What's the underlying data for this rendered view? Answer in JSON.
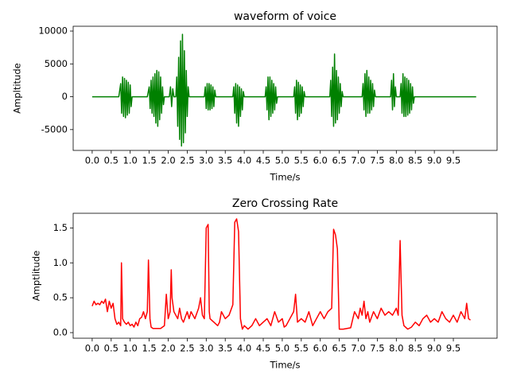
{
  "chart_data": [
    {
      "type": "line",
      "title": "waveform of voice",
      "xlabel": "Time/s",
      "ylabel": "Ampltitude",
      "color": "#008000",
      "xlim": [
        -0.5,
        10.65
      ],
      "ylim": [
        -8170,
        10730
      ],
      "xticks": [
        {
          "value": 0,
          "label": "0.0"
        },
        0.5,
        {
          "value": 1,
          "label": "1.0"
        },
        1.5,
        {
          "value": 2,
          "label": "2.0"
        },
        2.5,
        {
          "value": 3,
          "label": "3.0"
        },
        3.5,
        {
          "value": 4,
          "label": "4.0"
        },
        4.5,
        {
          "value": 5,
          "label": "5.0"
        },
        5.5,
        {
          "value": 6,
          "label": "6.0"
        },
        6.5,
        {
          "value": 7,
          "label": "7.0"
        },
        7.5,
        {
          "value": 8,
          "label": "8.0"
        },
        8.5,
        {
          "value": 9,
          "label": "9.0"
        },
        9.5
      ],
      "yticks": [
        -5000,
        0,
        5000,
        10000
      ],
      "x": [
        0,
        0.7,
        0.75,
        0.775,
        0.8,
        0.825,
        0.85,
        0.875,
        0.9,
        0.925,
        0.95,
        0.975,
        1.0,
        1.025,
        1.05,
        1.45,
        1.5,
        1.525,
        1.55,
        1.575,
        1.6,
        1.625,
        1.65,
        1.675,
        1.7,
        1.725,
        1.75,
        1.775,
        1.8,
        1.825,
        1.85,
        1.875,
        1.9,
        2.03,
        2.06,
        2.09,
        2.12,
        2.15,
        2.2,
        2.225,
        2.25,
        2.275,
        2.3,
        2.325,
        2.35,
        2.375,
        2.4,
        2.425,
        2.45,
        2.475,
        2.5,
        2.525,
        2.55,
        2.95,
        2.975,
        3.0,
        3.025,
        3.05,
        3.075,
        3.1,
        3.125,
        3.15,
        3.175,
        3.2,
        3.225,
        3.25,
        3.7,
        3.725,
        3.75,
        3.775,
        3.8,
        3.825,
        3.85,
        3.875,
        3.9,
        3.925,
        3.95,
        3.975,
        4.0,
        4.55,
        4.575,
        4.6,
        4.625,
        4.65,
        4.675,
        4.7,
        4.725,
        4.75,
        4.775,
        4.8,
        4.825,
        4.85,
        4.875,
        5.3,
        5.325,
        5.35,
        5.375,
        5.4,
        5.425,
        5.45,
        5.475,
        5.5,
        5.525,
        5.55,
        5.575,
        5.6,
        6.25,
        6.275,
        6.3,
        6.325,
        6.35,
        6.375,
        6.4,
        6.425,
        6.45,
        6.475,
        6.5,
        6.525,
        6.55,
        6.575,
        6.6,
        7.1,
        7.125,
        7.15,
        7.175,
        7.2,
        7.225,
        7.25,
        7.275,
        7.3,
        7.325,
        7.35,
        7.375,
        7.4,
        7.425,
        7.45,
        7.85,
        7.875,
        7.9,
        7.925,
        7.95,
        7.975,
        8.0,
        8.1,
        8.125,
        8.15,
        8.175,
        8.2,
        8.225,
        8.25,
        8.275,
        8.3,
        8.325,
        8.35,
        8.375,
        8.4,
        8.425,
        8.45,
        8.475,
        10.1
      ],
      "values": [
        0,
        0,
        2000,
        -2500,
        3000,
        -3000,
        2800,
        -3200,
        2500,
        -2800,
        2200,
        -2500,
        1800,
        -1500,
        0,
        0,
        1500,
        -1800,
        2500,
        -2500,
        3000,
        -3000,
        3500,
        -4000,
        4000,
        -4500,
        3800,
        -3500,
        3000,
        -2500,
        1500,
        -1200,
        0,
        0,
        1500,
        -1500,
        1200,
        0,
        0,
        3000,
        -4500,
        6000,
        -6500,
        8500,
        -7500,
        9500,
        -7000,
        7000,
        -5500,
        4000,
        -3000,
        1500,
        0,
        0,
        1500,
        -1800,
        2000,
        -2000,
        2000,
        -2000,
        1800,
        -1800,
        1500,
        -1500,
        1000,
        0,
        0,
        1500,
        -2500,
        2000,
        -4000,
        1800,
        -4500,
        1500,
        -3000,
        1200,
        -2000,
        800,
        0,
        0,
        1500,
        -2000,
        3000,
        -3500,
        3000,
        -3000,
        2500,
        -2500,
        2000,
        -2000,
        1500,
        -1000,
        0,
        0,
        1500,
        -2500,
        2500,
        -3500,
        2200,
        -3000,
        1800,
        -2500,
        1500,
        -1500,
        800,
        0,
        0,
        2500,
        -3000,
        4500,
        -4500,
        6500,
        -4000,
        4000,
        -3500,
        3000,
        -2500,
        2000,
        -1500,
        800,
        0,
        0,
        2000,
        -2000,
        3500,
        -3000,
        4000,
        -2500,
        3000,
        -2500,
        2500,
        -2000,
        2000,
        -1500,
        1000,
        0,
        0,
        2500,
        -2000,
        3500,
        -1500,
        1500,
        0,
        0,
        2000,
        -2500,
        3500,
        -3000,
        3000,
        -3000,
        2800,
        -2800,
        2500,
        -2500,
        2000,
        -2000,
        1500,
        -1000,
        0,
        0
      ]
    },
    {
      "type": "line",
      "title": "Zero Crossing Rate",
      "xlabel": "Time/s",
      "ylabel": "Amptlitude",
      "color": "#ff0000",
      "xlim": [
        -0.5,
        10.65
      ],
      "ylim": [
        -0.08,
        1.71
      ],
      "xticks": [
        {
          "value": 0,
          "label": "0.0"
        },
        0.5,
        {
          "value": 1,
          "label": "1.0"
        },
        1.5,
        {
          "value": 2,
          "label": "2.0"
        },
        2.5,
        {
          "value": 3,
          "label": "3.0"
        },
        3.5,
        {
          "value": 4,
          "label": "4.0"
        },
        4.5,
        {
          "value": 5,
          "label": "5.0"
        },
        5.5,
        {
          "value": 6,
          "label": "6.0"
        },
        6.5,
        {
          "value": 7,
          "label": "7.0"
        },
        7.5,
        {
          "value": 8,
          "label": "8.0"
        },
        8.5,
        {
          "value": 9,
          "label": "9.0"
        },
        9.5
      ],
      "yticks": [
        {
          "value": 0,
          "label": "0.0"
        },
        0.5,
        {
          "value": 1,
          "label": "1.0"
        },
        1.5
      ],
      "x": [
        0,
        0.05,
        0.1,
        0.15,
        0.2,
        0.25,
        0.3,
        0.35,
        0.4,
        0.45,
        0.5,
        0.55,
        0.6,
        0.65,
        0.7,
        0.75,
        0.77,
        0.8,
        0.85,
        0.9,
        0.95,
        1.0,
        1.05,
        1.1,
        1.15,
        1.2,
        1.25,
        1.3,
        1.35,
        1.4,
        1.45,
        1.48,
        1.52,
        1.55,
        1.6,
        1.7,
        1.8,
        1.9,
        1.95,
        2.0,
        2.05,
        2.08,
        2.1,
        2.15,
        2.2,
        2.25,
        2.3,
        2.35,
        2.4,
        2.5,
        2.55,
        2.6,
        2.7,
        2.8,
        2.85,
        2.9,
        2.95,
        3.0,
        3.05,
        3.08,
        3.1,
        3.2,
        3.3,
        3.35,
        3.4,
        3.5,
        3.6,
        3.7,
        3.75,
        3.8,
        3.85,
        3.9,
        3.95,
        4.0,
        4.1,
        4.2,
        4.3,
        4.4,
        4.5,
        4.6,
        4.7,
        4.8,
        4.9,
        5.0,
        5.05,
        5.1,
        5.2,
        5.3,
        5.35,
        5.4,
        5.5,
        5.6,
        5.7,
        5.8,
        5.9,
        6.0,
        6.1,
        6.2,
        6.3,
        6.35,
        6.4,
        6.45,
        6.5,
        6.6,
        6.7,
        6.8,
        6.9,
        7.0,
        7.05,
        7.1,
        7.15,
        7.2,
        7.25,
        7.3,
        7.4,
        7.5,
        7.6,
        7.7,
        7.8,
        7.9,
        8.0,
        8.05,
        8.1,
        8.15,
        8.2,
        8.3,
        8.4,
        8.5,
        8.6,
        8.7,
        8.8,
        8.9,
        9.0,
        9.1,
        9.2,
        9.3,
        9.4,
        9.5,
        9.6,
        9.7,
        9.8,
        9.85,
        9.9,
        9.95
      ],
      "values": [
        0.38,
        0.45,
        0.4,
        0.42,
        0.4,
        0.45,
        0.42,
        0.48,
        0.3,
        0.45,
        0.35,
        0.42,
        0.2,
        0.12,
        0.15,
        0.1,
        1.0,
        0.2,
        0.15,
        0.12,
        0.15,
        0.1,
        0.12,
        0.08,
        0.15,
        0.1,
        0.2,
        0.22,
        0.3,
        0.2,
        0.3,
        1.04,
        0.2,
        0.08,
        0.06,
        0.06,
        0.06,
        0.1,
        0.55,
        0.2,
        0.3,
        0.9,
        0.5,
        0.3,
        0.25,
        0.2,
        0.35,
        0.2,
        0.15,
        0.3,
        0.2,
        0.3,
        0.2,
        0.35,
        0.5,
        0.25,
        0.2,
        1.5,
        1.55,
        0.3,
        0.2,
        0.15,
        0.1,
        0.15,
        0.3,
        0.2,
        0.25,
        0.4,
        1.58,
        1.63,
        1.45,
        0.2,
        0.05,
        0.1,
        0.05,
        0.1,
        0.2,
        0.1,
        0.15,
        0.2,
        0.1,
        0.3,
        0.15,
        0.2,
        0.08,
        0.1,
        0.2,
        0.3,
        0.55,
        0.15,
        0.2,
        0.15,
        0.3,
        0.1,
        0.2,
        0.3,
        0.2,
        0.3,
        0.35,
        1.48,
        1.4,
        1.2,
        0.05,
        0.05,
        0.06,
        0.07,
        0.3,
        0.2,
        0.35,
        0.25,
        0.45,
        0.2,
        0.3,
        0.15,
        0.3,
        0.2,
        0.35,
        0.25,
        0.3,
        0.25,
        0.35,
        0.25,
        1.32,
        0.25,
        0.1,
        0.05,
        0.08,
        0.15,
        0.1,
        0.2,
        0.25,
        0.15,
        0.2,
        0.15,
        0.3,
        0.2,
        0.15,
        0.25,
        0.15,
        0.3,
        0.2,
        0.42,
        0.2,
        0.18
      ]
    }
  ]
}
